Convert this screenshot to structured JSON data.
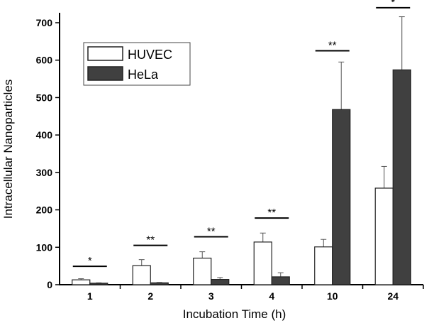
{
  "chart_data": {
    "type": "bar",
    "title": "",
    "xlabel": "Incubation Time (h)",
    "ylabel": "Intracellular Nanoparticles",
    "categories": [
      "1",
      "2",
      "3",
      "4",
      "10",
      "24"
    ],
    "ylim": [
      0,
      730
    ],
    "yticks": [
      0,
      100,
      200,
      300,
      400,
      500,
      600,
      700
    ],
    "grid": false,
    "legend_position": "top-left",
    "series": [
      {
        "name": "HUVEC",
        "color": "#ffffff",
        "values": [
          13,
          51,
          71,
          114,
          101,
          258
        ],
        "errors": [
          3,
          16,
          17,
          24,
          20,
          58
        ]
      },
      {
        "name": "HeLa",
        "color": "#404040",
        "values": [
          4,
          5,
          14,
          21,
          468,
          574
        ],
        "errors": [
          1,
          1,
          5,
          11,
          127,
          142
        ]
      }
    ],
    "significance": [
      {
        "category": "1",
        "label": "*",
        "level": 49
      },
      {
        "category": "2",
        "label": "**",
        "level": 105
      },
      {
        "category": "3",
        "label": "**",
        "level": 128
      },
      {
        "category": "4",
        "label": "**",
        "level": 178
      },
      {
        "category": "10",
        "label": "**",
        "level": 625
      },
      {
        "category": "24",
        "label": "*",
        "level": 740
      }
    ]
  }
}
